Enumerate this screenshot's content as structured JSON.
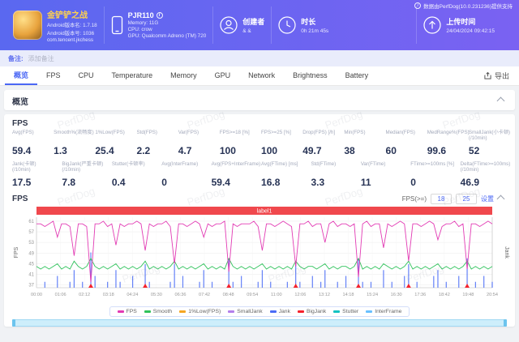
{
  "watermark": "PerfDog",
  "header": {
    "powered_by": "数据由PerfDog(10.0.231236)提供支持",
    "game": {
      "title": "金铲铲之战",
      "version_name": "Android版本名: 1.7.18",
      "version_code": "Android版本号: 1036",
      "package": "com.tencent.jkchess"
    },
    "device": {
      "name": "PJR110",
      "memory": "Memory: 11G",
      "cpu": "CPU: crow",
      "gpu": "GPU: Qualcomm Adreno (TM) 720"
    },
    "creator": {
      "label": "创建者",
      "value": "& &"
    },
    "duration": {
      "label": "时长",
      "value": "0h 21m 45s"
    },
    "upload": {
      "label": "上传时间",
      "value": "24/04/2024 09:42:15"
    }
  },
  "note_bar": {
    "label": "备注:",
    "placeholder": "添加备注"
  },
  "tabs": {
    "items": [
      {
        "label": "概览",
        "active": true
      },
      {
        "label": "FPS",
        "active": false
      },
      {
        "label": "CPU",
        "active": false
      },
      {
        "label": "Temperature",
        "active": false
      },
      {
        "label": "Memory",
        "active": false
      },
      {
        "label": "GPU",
        "active": false
      },
      {
        "label": "Network",
        "active": false
      },
      {
        "label": "Brightness",
        "active": false
      },
      {
        "label": "Battery",
        "active": false
      }
    ],
    "export_label": "导出"
  },
  "overview_section": {
    "title": "概览"
  },
  "fps_section": {
    "title": "FPS",
    "sub_title": "FPS",
    "controls": {
      "label": "FPS(>=)",
      "input1": "18",
      "input2": "25",
      "button": "设置"
    },
    "metrics_row1": [
      {
        "label": "Avg(FPS)",
        "sub": "",
        "value": "59.4"
      },
      {
        "label": "Smooth%(流畅度)",
        "sub": "",
        "value": "1.3"
      },
      {
        "label": "1%Low(FPS)",
        "sub": "",
        "value": "25.4"
      },
      {
        "label": "Std(FPS)",
        "sub": "",
        "value": "2.2"
      },
      {
        "label": "Var(FPS)",
        "sub": "",
        "value": "4.7"
      },
      {
        "label": "FPS>=18 [%]",
        "sub": "",
        "value": "100"
      },
      {
        "label": "FPS>=25 [%]",
        "sub": "",
        "value": "100"
      },
      {
        "label": "Drop(FPS) [/h]",
        "sub": "",
        "value": "49.7"
      },
      {
        "label": "Min(FPS)",
        "sub": "",
        "value": "38"
      },
      {
        "label": "Median(FPS)",
        "sub": "",
        "value": "60"
      },
      {
        "label": "MedRange%(FPS)",
        "sub": "",
        "value": "99.6"
      },
      {
        "label": "SmallJank(小卡顿)",
        "sub": "(/10min)",
        "value": "52"
      }
    ],
    "metrics_row2": [
      {
        "label": "Jank(卡顿)",
        "sub": "(/10min)",
        "value": "17.5"
      },
      {
        "label": "BigJank(严重卡顿)",
        "sub": "(/10min)",
        "value": "7.8"
      },
      {
        "label": "Stutter(卡顿率)",
        "sub": "",
        "value": "0.4"
      },
      {
        "label": "Avg(InterFrame)",
        "sub": "",
        "value": "0"
      },
      {
        "label": "Avg(FPS+InterFrame)",
        "sub": "",
        "value": "59.4"
      },
      {
        "label": "Avg(FTime) [ms]",
        "sub": "",
        "value": "16.8"
      },
      {
        "label": "Std(FTime)",
        "sub": "",
        "value": "3.3"
      },
      {
        "label": "Var(FTime)",
        "sub": "",
        "value": "11"
      },
      {
        "label": "FTime>=100ms [%]",
        "sub": "",
        "value": "0"
      },
      {
        "label": "Delta(FTime>=100ms)",
        "sub": "(/10min)",
        "value": "46.9"
      }
    ]
  },
  "chart_data": {
    "type": "line",
    "title": "label1",
    "label_bar_color": "#f0484d",
    "ylabel_left": "FPS",
    "ylabel_right": "Jank",
    "yticks_left": [
      61,
      57,
      53,
      49,
      45,
      41,
      37
    ],
    "ylim_left": [
      36,
      62.5
    ],
    "ylim_right": [
      0,
      12
    ],
    "x_tick_labels": [
      "00:00",
      "01:06",
      "02:12",
      "03:18",
      "04:24",
      "05:30",
      "06:36",
      "07:42",
      "08:48",
      "09:54",
      "11:00",
      "12:06",
      "13:12",
      "14:18",
      "15:24",
      "16:30",
      "17:36",
      "18:42",
      "19:48",
      "20:54"
    ],
    "series": [
      {
        "name": "Jank",
        "type": "bars",
        "axis": "right",
        "color": "#4a6cf7",
        "values": [
          0,
          0,
          1,
          0,
          0,
          2,
          0,
          0,
          1,
          3,
          0,
          1,
          0,
          6,
          2,
          0,
          0,
          1,
          0,
          3,
          1,
          0,
          0,
          2,
          0,
          0,
          4,
          1,
          0,
          0,
          0,
          0,
          1,
          4,
          0,
          2,
          0,
          0,
          0,
          1,
          3,
          0,
          1,
          0,
          0,
          0,
          5,
          1,
          0,
          2,
          0,
          0,
          0,
          1,
          3,
          0,
          1,
          0,
          0,
          0,
          1,
          0,
          4,
          1,
          0,
          0,
          2,
          0,
          1,
          3,
          0,
          0,
          1,
          0,
          2,
          0,
          0,
          5,
          1,
          0,
          1,
          0,
          0,
          3,
          0,
          1,
          0,
          0,
          2,
          4,
          0,
          1,
          0,
          0,
          0,
          2,
          3,
          0,
          1,
          0,
          0,
          2,
          0,
          5,
          0,
          1,
          0,
          2,
          0,
          1
        ]
      },
      {
        "name": "BigJank",
        "type": "markers",
        "color": "#f5222d",
        "indices": [
          13,
          26,
          46,
          62,
          77,
          89,
          103
        ]
      },
      {
        "name": "Smooth",
        "type": "line",
        "color": "#2fc25b",
        "values": [
          44,
          43,
          44,
          43,
          44,
          45,
          43,
          44,
          43,
          46,
          44,
          43,
          44,
          47,
          44,
          43,
          44,
          43,
          44,
          45,
          43,
          44,
          43,
          44,
          43,
          44,
          46,
          43,
          44,
          43,
          44,
          43,
          44,
          46,
          43,
          44,
          43,
          44,
          43,
          44,
          45,
          43,
          44,
          43,
          44,
          43,
          47,
          44,
          43,
          44,
          43,
          44,
          43,
          44,
          45,
          43,
          44,
          43,
          44,
          43,
          44,
          43,
          46,
          44,
          43,
          44,
          44,
          43,
          44,
          45,
          43,
          44,
          43,
          44,
          44,
          43,
          44,
          47,
          43,
          44,
          43,
          44,
          43,
          45,
          44,
          43,
          44,
          43,
          44,
          46,
          43,
          44,
          43,
          44,
          43,
          44,
          45,
          43,
          44,
          43,
          44,
          43,
          44,
          46,
          43,
          44,
          43,
          44,
          43,
          44
        ]
      },
      {
        "name": "FPS",
        "type": "line",
        "color": "#e23bb4",
        "values": [
          60,
          60,
          59,
          60,
          61,
          55,
          60,
          60,
          59,
          48,
          60,
          60,
          59,
          38,
          60,
          60,
          61,
          59,
          60,
          52,
          60,
          59,
          60,
          60,
          61,
          60,
          50,
          60,
          59,
          60,
          60,
          61,
          59,
          45,
          60,
          60,
          59,
          60,
          61,
          60,
          55,
          60,
          59,
          60,
          60,
          61,
          42,
          60,
          59,
          60,
          60,
          60,
          61,
          59,
          50,
          60,
          60,
          59,
          60,
          61,
          60,
          59,
          44,
          60,
          60,
          61,
          59,
          60,
          60,
          53,
          60,
          61,
          59,
          60,
          60,
          59,
          60,
          40,
          60,
          61,
          59,
          60,
          60,
          51,
          60,
          59,
          60,
          61,
          60,
          46,
          60,
          60,
          59,
          60,
          61,
          60,
          54,
          59,
          60,
          60,
          61,
          59,
          60,
          43,
          60,
          60,
          59,
          60,
          61,
          60
        ]
      }
    ],
    "legend": [
      {
        "label": "FPS",
        "color": "#e23bb4"
      },
      {
        "label": "Smooth",
        "color": "#2fc25b"
      },
      {
        "label": "1%Low(FPS)",
        "color": "#f5a623"
      },
      {
        "label": "SmallJank",
        "color": "#b37feb"
      },
      {
        "label": "Jank",
        "color": "#4a6cf7"
      },
      {
        "label": "BigJank",
        "color": "#f5222d"
      },
      {
        "label": "Stutter",
        "color": "#13c2c2"
      },
      {
        "label": "InterFrame",
        "color": "#69c0ff"
      }
    ]
  }
}
